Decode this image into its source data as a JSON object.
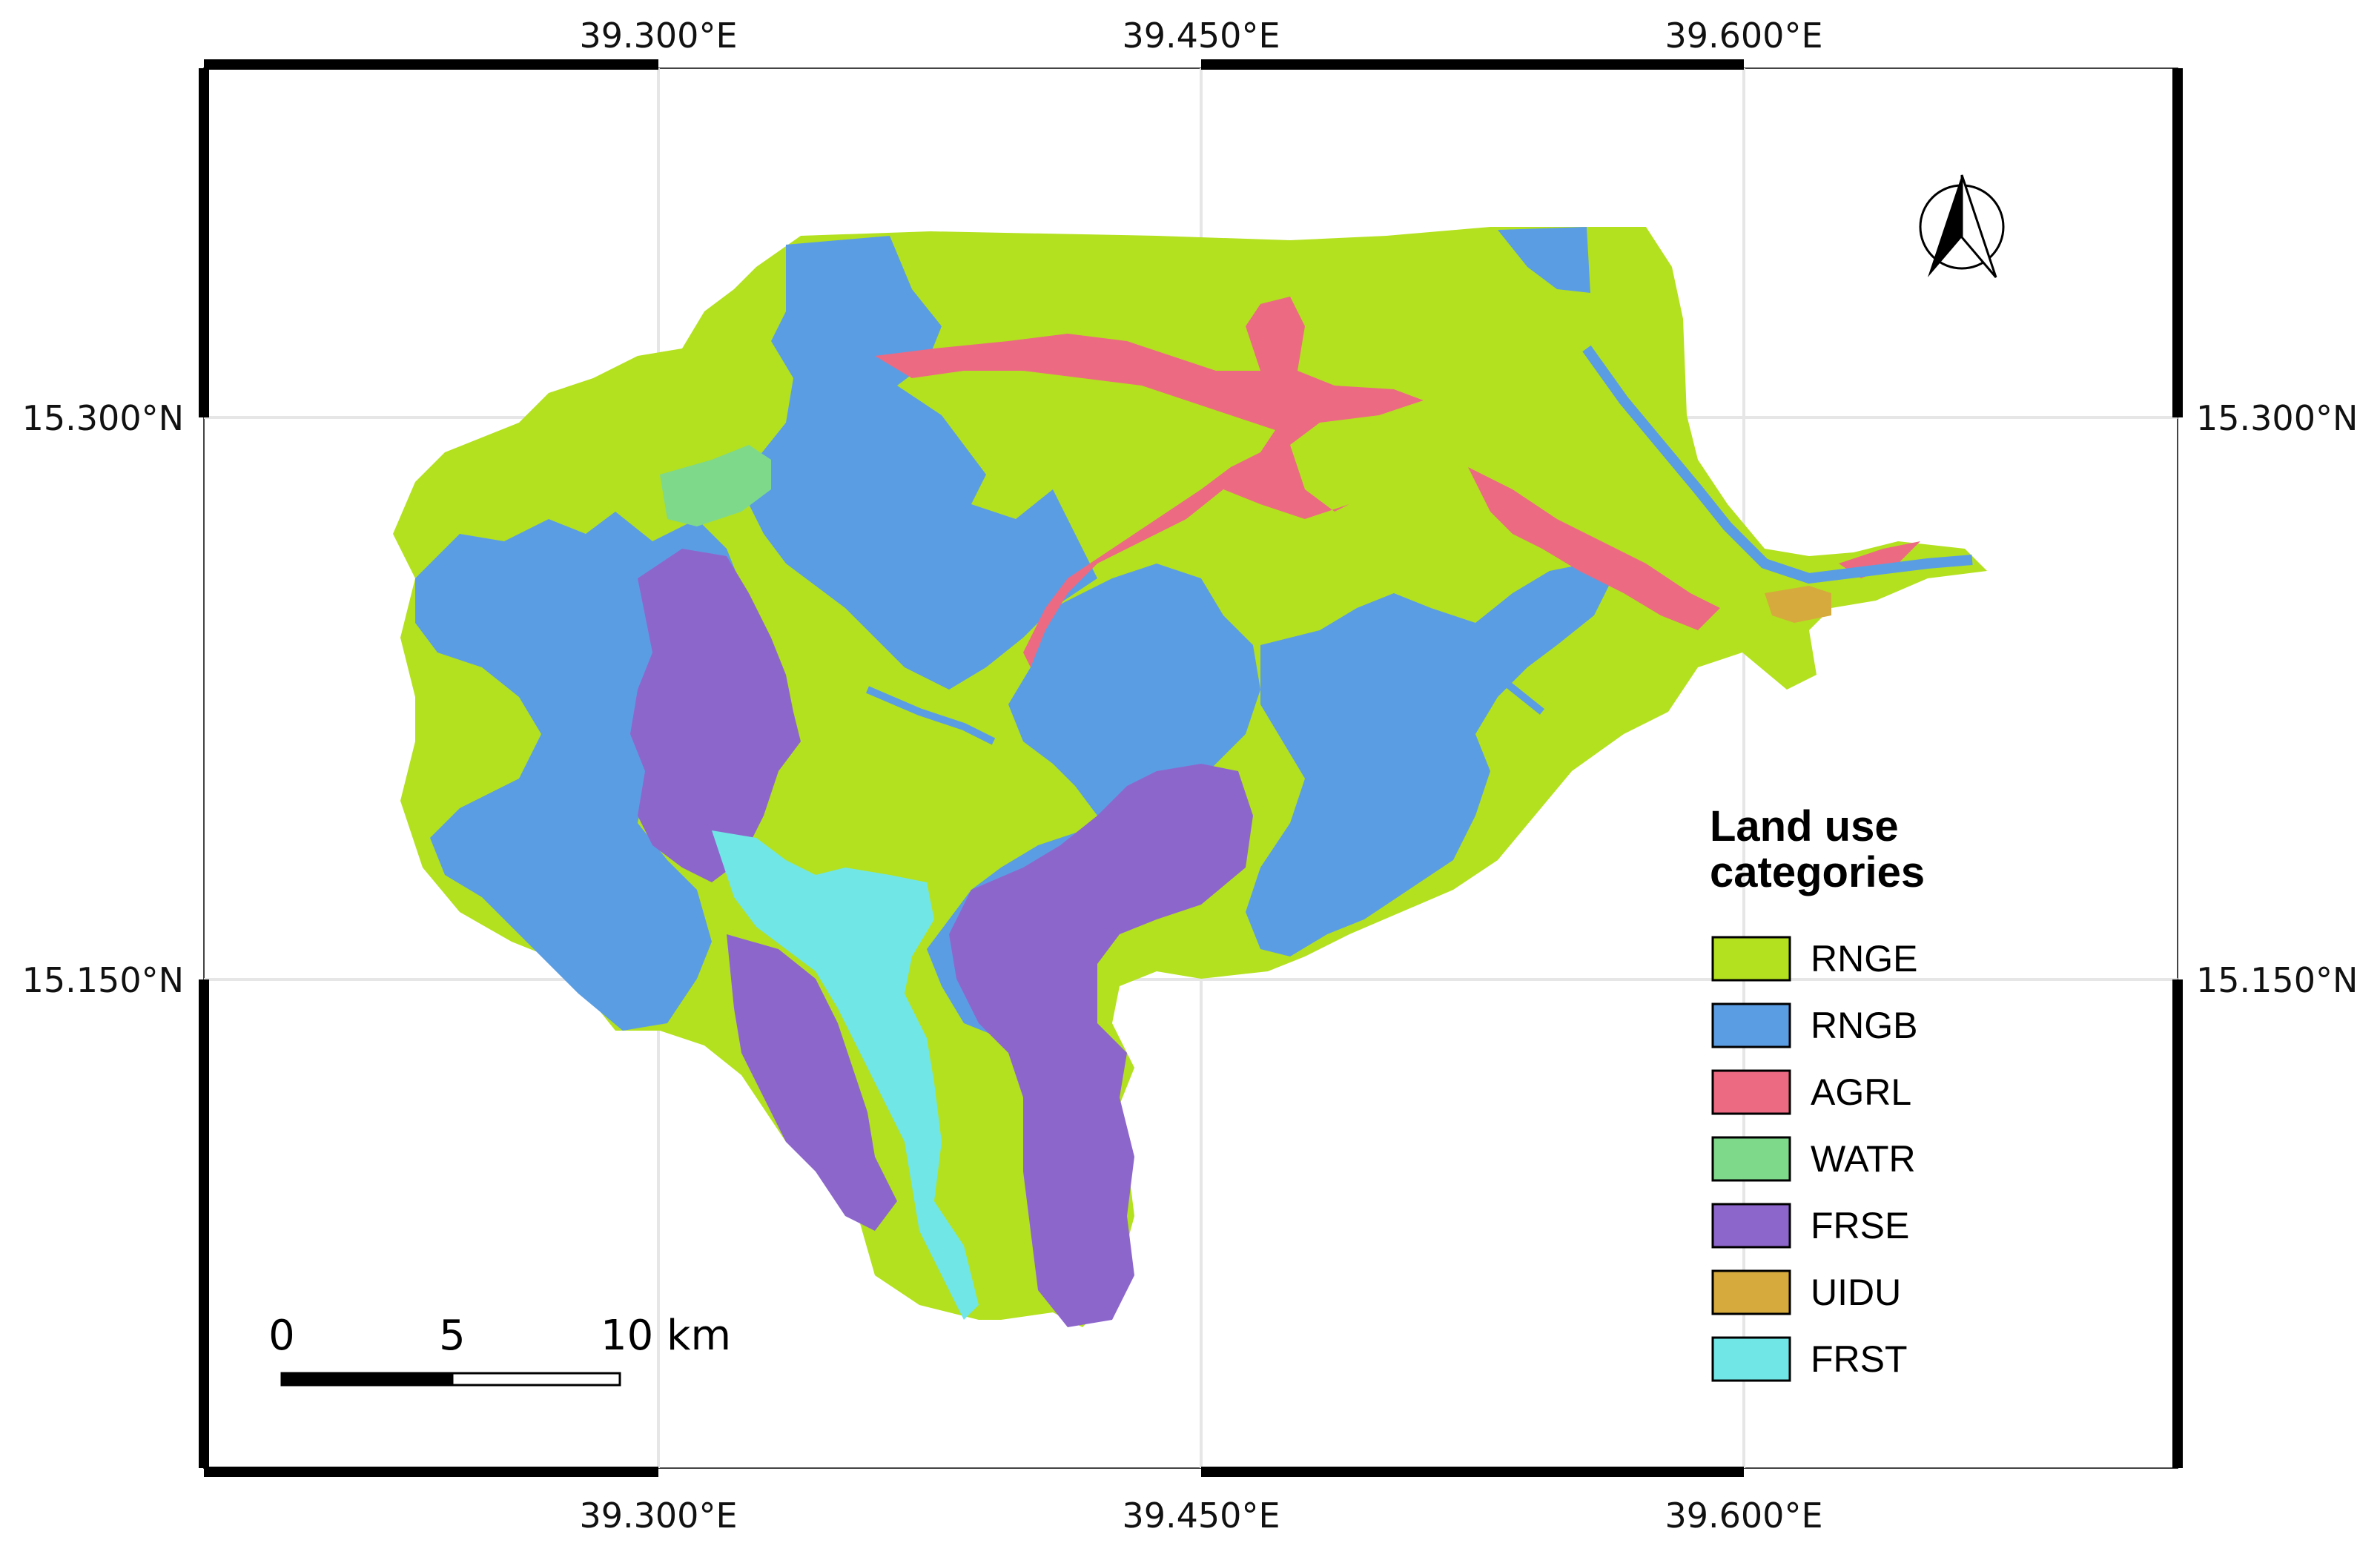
{
  "map": {
    "longitude_labels": [
      "39.300°E",
      "39.450°E",
      "39.600°E"
    ],
    "latitude_labels": [
      "15.300°N",
      "15.150°N"
    ],
    "north_arrow": "north-arrow-icon"
  },
  "legend": {
    "title_line1": "Land use",
    "title_line2": "categories",
    "items": [
      {
        "code": "RNGE",
        "color": "#b3e11f"
      },
      {
        "code": "RNGB",
        "color": "#5b9de3"
      },
      {
        "code": "AGRL",
        "color": "#ec6a82"
      },
      {
        "code": "WATR",
        "color": "#7ed98b"
      },
      {
        "code": "FRSE",
        "color": "#8d66cc"
      },
      {
        "code": "UIDU",
        "color": "#d6aa3c"
      },
      {
        "code": "FRST",
        "color": "#70e6e6"
      }
    ]
  },
  "scale_bar": {
    "labels": [
      "0",
      "5",
      "10 km"
    ]
  }
}
